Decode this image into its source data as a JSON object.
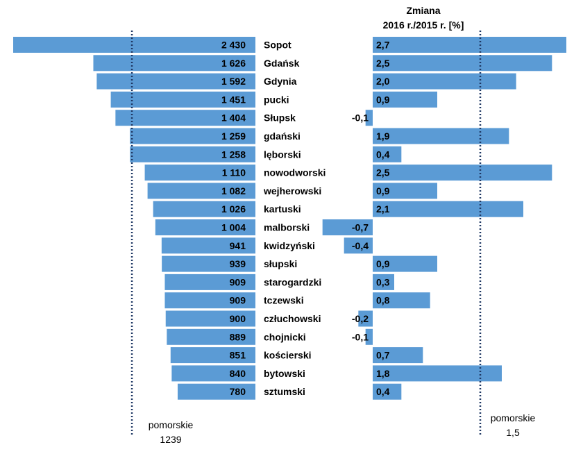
{
  "chart_data": [
    {
      "type": "bar",
      "orientation": "horizontal",
      "categories": [
        "Sopot",
        "Gdańsk",
        "Gdynia",
        "pucki",
        "Słupsk",
        "gdański",
        "lęborski",
        "nowodworski",
        "wejherowski",
        "kartuski",
        "malborski",
        "kwidzyński",
        "słupski",
        "starogardzki",
        "tczewski",
        "człuchowski",
        "chojnicki",
        "kościerski",
        "bytowski",
        "sztumski"
      ],
      "values": [
        2430,
        1626,
        1592,
        1451,
        1404,
        1259,
        1258,
        1110,
        1082,
        1026,
        1004,
        941,
        939,
        909,
        909,
        900,
        889,
        851,
        840,
        780
      ],
      "value_labels": [
        "2 430",
        "1 626",
        "1 592",
        "1 451",
        "1 404",
        "1 259",
        "1 258",
        "1 110",
        "1 082",
        "1 026",
        "1 004",
        "941",
        "939",
        "909",
        "909",
        "900",
        "889",
        "851",
        "840",
        "780"
      ],
      "reference": {
        "label": "pomorskie",
        "value_label": "1239",
        "value": 1239
      }
    },
    {
      "type": "bar",
      "orientation": "horizontal",
      "title_line1": "Zmiana",
      "title_line2": "2016 r./2015 r. [%]",
      "values": [
        2.7,
        2.5,
        2.0,
        0.9,
        -0.1,
        1.9,
        0.4,
        2.5,
        0.9,
        2.1,
        -0.7,
        -0.4,
        0.9,
        0.3,
        0.8,
        -0.2,
        -0.1,
        0.7,
        1.8,
        0.4
      ],
      "value_labels": [
        "2,7",
        "2,5",
        "2,0",
        "0,9",
        "-0,1",
        "1,9",
        "0,4",
        "2,5",
        "0,9",
        "2,1",
        "-0,7",
        "-0,4",
        "0,9",
        "0,3",
        "0,8",
        "-0,2",
        "-0,1",
        "0,7",
        "1,8",
        "0,4"
      ],
      "reference": {
        "label": "pomorskie",
        "value_label": "1,5",
        "value": 1.5
      }
    }
  ]
}
